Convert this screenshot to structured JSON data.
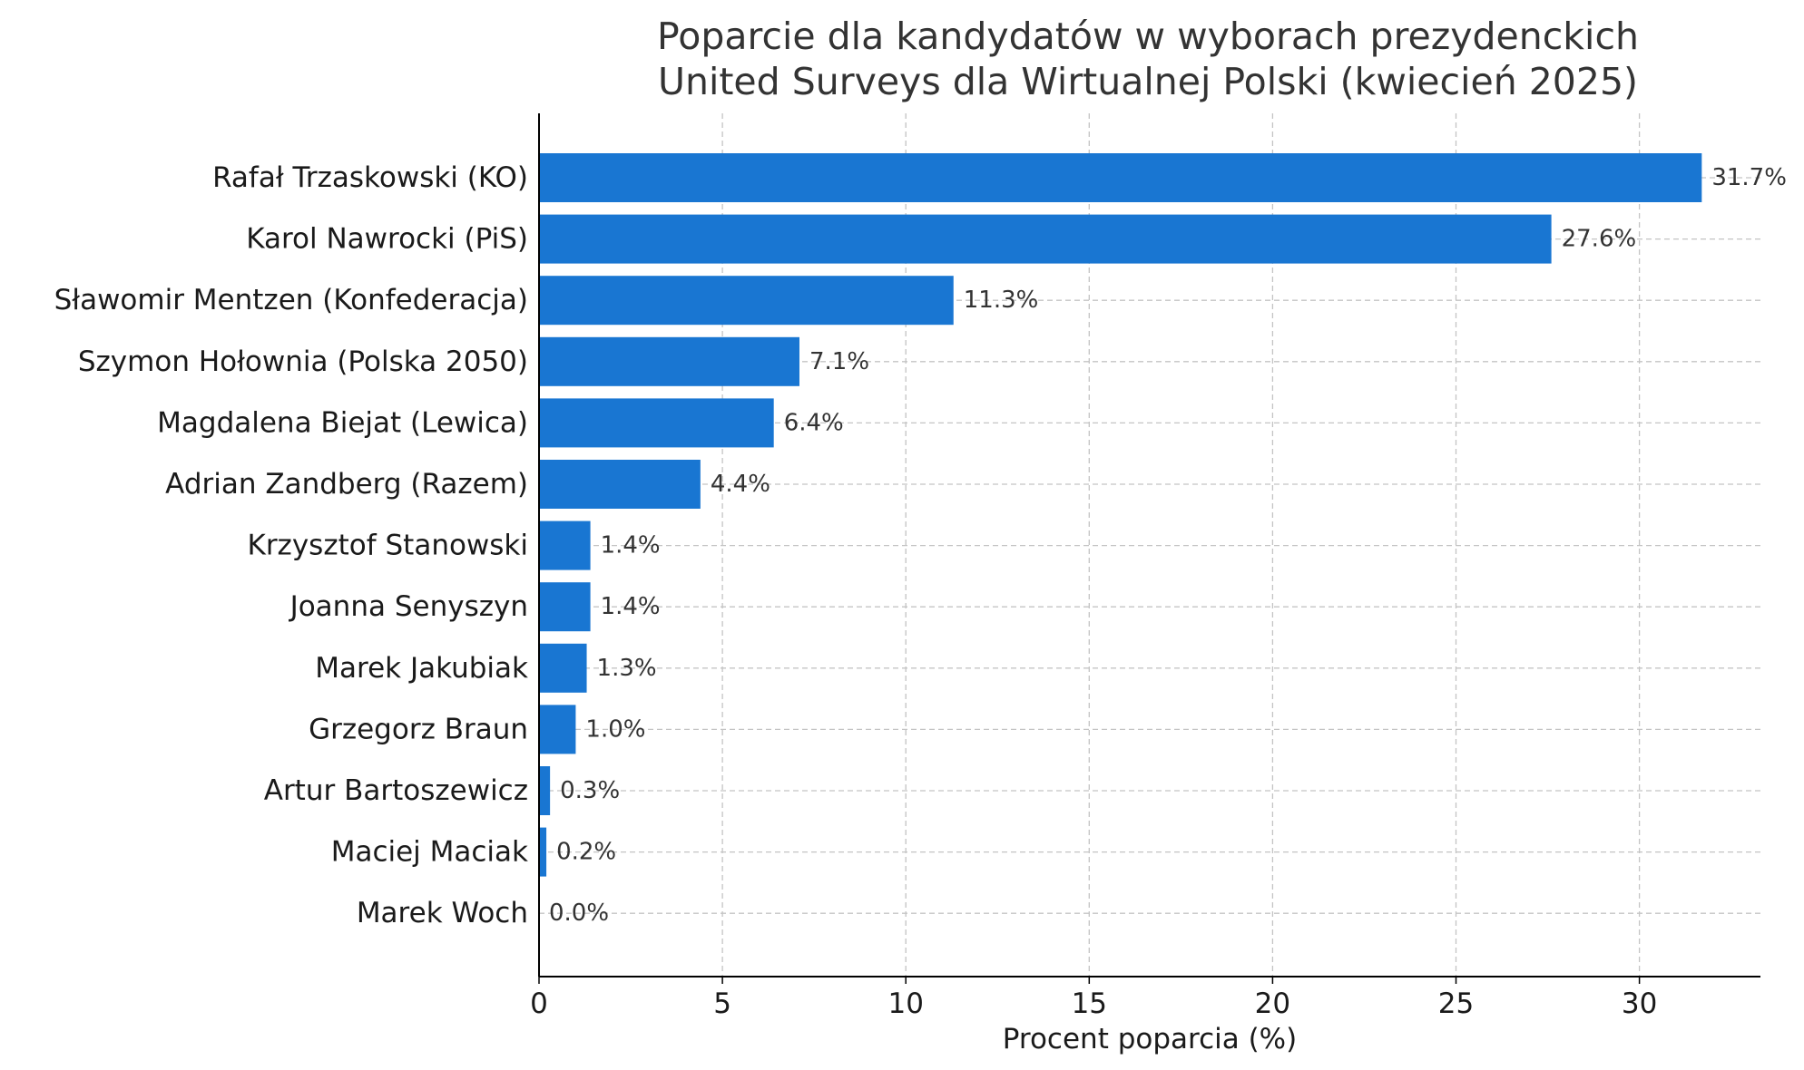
{
  "chart_data": {
    "type": "bar",
    "orientation": "horizontal",
    "title": "Poparcie dla kandydatów w wyborach prezydenckich",
    "subtitle": "United Surveys dla Wirtualnej Polski (kwiecień 2025)",
    "xlabel": "Procent poparcia (%)",
    "ylabel": "",
    "xlim": [
      0,
      33.3
    ],
    "xticks": [
      0,
      5,
      10,
      15,
      20,
      25,
      30
    ],
    "grid": true,
    "bar_color": "#1976d2",
    "categories": [
      "Rafał Trzaskowski (KO)",
      "Karol Nawrocki (PiS)",
      "Sławomir Mentzen (Konfederacja)",
      "Szymon Hołownia (Polska 2050)",
      "Magdalena Biejat (Lewica)",
      "Adrian Zandberg (Razem)",
      "Krzysztof Stanowski",
      "Joanna Senyszyn",
      "Marek Jakubiak",
      "Grzegorz Braun",
      "Artur Bartoszewicz",
      "Maciej Maciak",
      "Marek Woch"
    ],
    "values": [
      31.7,
      27.6,
      11.3,
      7.1,
      6.4,
      4.4,
      1.4,
      1.4,
      1.3,
      1.0,
      0.3,
      0.2,
      0.0
    ],
    "data_labels": [
      "31.7%",
      "27.6%",
      "11.3%",
      "7.1%",
      "6.4%",
      "4.4%",
      "1.4%",
      "1.4%",
      "1.3%",
      "1.0%",
      "0.3%",
      "0.2%",
      "0.0%"
    ]
  }
}
